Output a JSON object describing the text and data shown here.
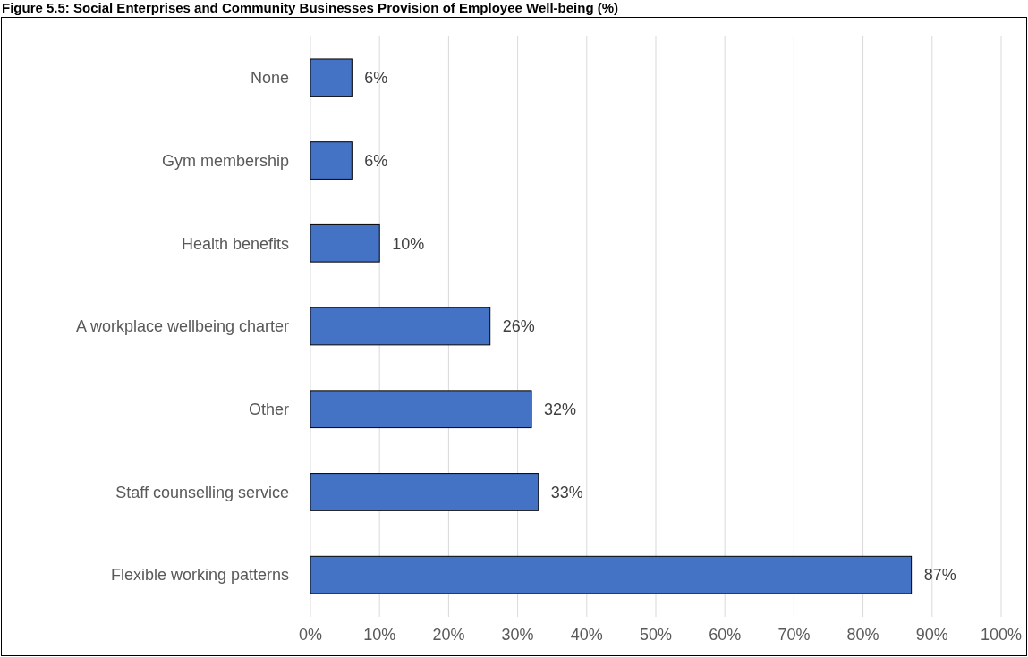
{
  "chart_data": {
    "type": "bar",
    "orientation": "horizontal",
    "title": "Figure 5.5: Social Enterprises and Community Businesses Provision of Employee Well-being (%)",
    "categories": [
      "None",
      "Gym membership",
      "Health benefits",
      "A workplace wellbeing charter",
      "Other",
      "Staff counselling service",
      "Flexible working patterns"
    ],
    "values": [
      6,
      6,
      10,
      26,
      32,
      33,
      87
    ],
    "color": "#4472c4",
    "xlim": [
      0,
      100
    ],
    "xticks": [
      {
        "value": 0,
        "label": "0%"
      },
      {
        "value": 10,
        "label": "10%"
      },
      {
        "value": 20,
        "label": "20%"
      },
      {
        "value": 30,
        "label": "30%"
      },
      {
        "value": 40,
        "label": "40%"
      },
      {
        "value": 50,
        "label": "50%"
      },
      {
        "value": 60,
        "label": "60%"
      },
      {
        "value": 70,
        "label": "70%"
      },
      {
        "value": 80,
        "label": "80%"
      },
      {
        "value": 90,
        "label": "90%"
      },
      {
        "value": 100,
        "label": "100%"
      }
    ],
    "value_labels": [
      "6%",
      "6%",
      "10%",
      "26%",
      "32%",
      "33%",
      "87%"
    ],
    "grid": "x"
  }
}
